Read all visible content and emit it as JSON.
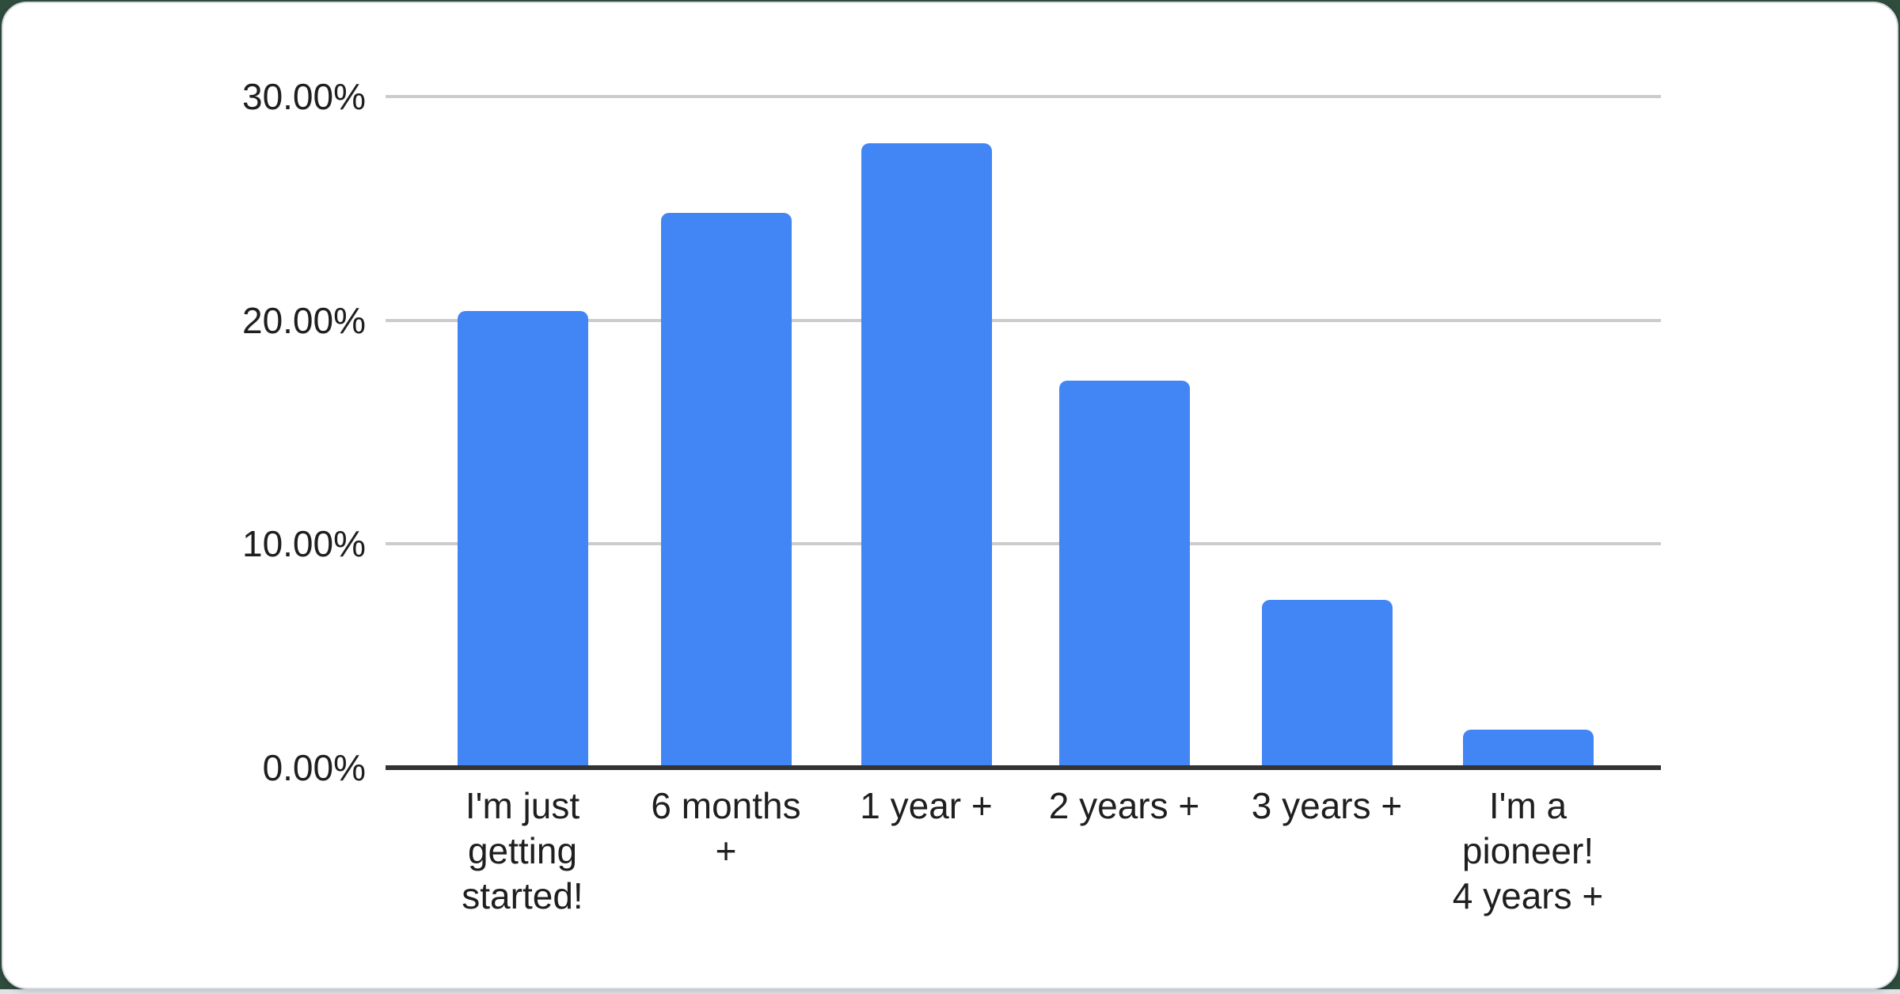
{
  "colors": {
    "bar": "#4285f4",
    "gridline": "#cccccc",
    "axis_line": "#333333",
    "label_text": "#1f1f1f",
    "card_background": "#ffffff",
    "card_border": "#d7dade",
    "page_background": "#2f4c3d",
    "bottom_strip": "#dfe3e8"
  },
  "chart_data": {
    "type": "bar",
    "categories": [
      "I'm just getting started!",
      "6 months +",
      "1 year +",
      "2 years +",
      "3 years +",
      "I'm a pioneer! 4 years +"
    ],
    "values": [
      20.4,
      24.8,
      27.9,
      17.3,
      7.5,
      1.7
    ],
    "value_unit": "percent",
    "xlabel": "",
    "ylabel": "",
    "ylim": [
      0,
      30
    ],
    "grid": true,
    "legend": "none",
    "yticks": [
      {
        "value": 0,
        "label": "0.00%"
      },
      {
        "value": 10,
        "label": "10.00%"
      },
      {
        "value": 20,
        "label": "20.00%"
      },
      {
        "value": 30,
        "label": "30.00%"
      }
    ],
    "x_tick_labels_wrapped": [
      "I'm just\ngetting\nstarted!",
      "6 months\n+",
      "1 year +",
      "2 years +",
      "3 years +",
      "I'm a\npioneer!\n4 years +"
    ]
  }
}
